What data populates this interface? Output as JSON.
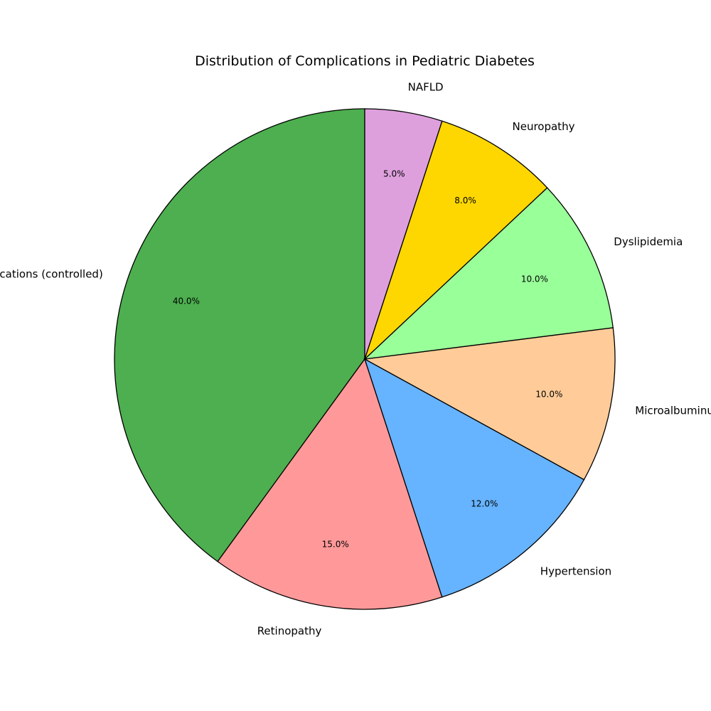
{
  "chart_data": {
    "type": "pie",
    "title": "Distribution of Complications in Pediatric Diabetes",
    "labels": [
      "No complications (controlled)",
      "Retinopathy",
      "Hypertension",
      "Microalbuminuria",
      "Dyslipidemia",
      "Neuropathy",
      "NAFLD"
    ],
    "values": [
      40,
      15,
      12,
      10,
      10,
      8,
      5
    ],
    "percent_labels": [
      "40.0%",
      "15.0%",
      "12.0%",
      "10.0%",
      "10.0%",
      "8.0%",
      "5.0%"
    ],
    "colors": [
      "#4daf4f",
      "#ff9999",
      "#66b3ff",
      "#ffcc99",
      "#99ff99",
      "#ffd700",
      "#dda0dd"
    ],
    "edge_color": "#000000",
    "start_angle_deg": 90,
    "direction": "counterclockwise",
    "legend": "none"
  }
}
